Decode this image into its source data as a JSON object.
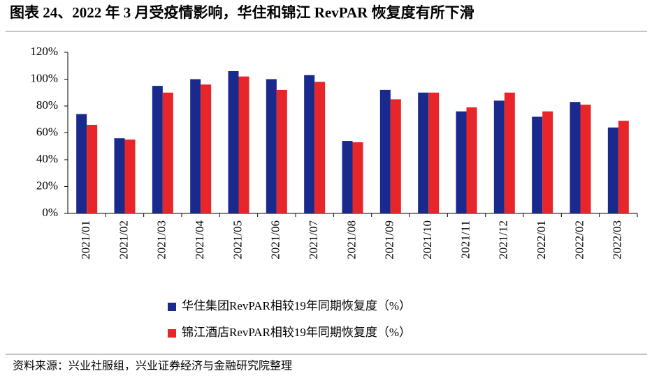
{
  "chart_data": {
    "type": "bar",
    "title": "图表 24、2022 年 3 月受疫情影响，华住和锦江 RevPAR 恢复度有所下滑",
    "categories": [
      "2021/01",
      "2021/02",
      "2021/03",
      "2021/04",
      "2021/05",
      "2021/06",
      "2021/07",
      "2021/08",
      "2021/09",
      "2021/10",
      "2021/11",
      "2021/12",
      "2022/01",
      "2022/02",
      "2022/03"
    ],
    "series": [
      {
        "name": "华住集团RevPAR相较19年同期恢复度（%）",
        "color": "#1a2a8c",
        "values": [
          74,
          56,
          95,
          100,
          106,
          100,
          103,
          54,
          92,
          90,
          76,
          84,
          72,
          83,
          64
        ]
      },
      {
        "name": "锦江酒店RevPAR相较19年同期恢复度（%）",
        "color": "#e8262a",
        "values": [
          66,
          55,
          90,
          96,
          102,
          92,
          98,
          53,
          85,
          90,
          79,
          90,
          76,
          81,
          69
        ]
      }
    ],
    "ylim": [
      0,
      120
    ],
    "yticks": [
      {
        "value": 0,
        "label": "0%"
      },
      {
        "value": 20,
        "label": "20%"
      },
      {
        "value": 40,
        "label": "40%"
      },
      {
        "value": 60,
        "label": "60%"
      },
      {
        "value": 80,
        "label": "80%"
      },
      {
        "value": 100,
        "label": "100%"
      },
      {
        "value": 120,
        "label": "120%"
      }
    ],
    "grid": false,
    "source": "资料来源：兴业社服组，兴业证券经济与金融研究院整理"
  }
}
